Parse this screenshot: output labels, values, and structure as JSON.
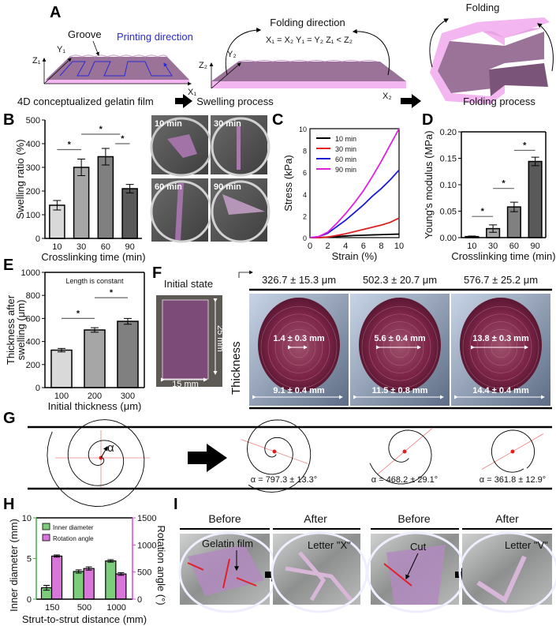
{
  "panel_labels": {
    "A": "A",
    "B": "B",
    "C": "C",
    "D": "D",
    "E": "E",
    "F": "F",
    "G": "G",
    "H": "H",
    "I": "I"
  },
  "a": {
    "groove": "Groove",
    "printing_direction": "Printing direction",
    "folding_direction": "Folding direction",
    "equation": "X₁ = X₂ Y₁ = Y₂ Z₁ < Z₂",
    "folding": "Folding",
    "axis_z1": "Z₁",
    "axis_y1": "Y₁",
    "axis_x1": "X₁",
    "axis_z2": "Z₂",
    "axis_y2": "Y₂",
    "axis_x2": "X₂",
    "caption_1": "4D conceptualized gelatin film",
    "caption_2": "Swelling process",
    "caption_3": "Folding process",
    "colors": {
      "film_top": "#9b7399",
      "film_edge": "#f4b6f0",
      "printing": "#2b2bd6"
    }
  },
  "b_photos": [
    "10 min",
    "30 min",
    "60 min",
    "90 min"
  ],
  "f": {
    "initial_state": "Initial state",
    "length": "25 mm",
    "width": "15 mm",
    "thickness_label": "Thickness",
    "thickness_values": [
      "326.7 ± 15.3 μm",
      "502.3 ± 20.7 μm",
      "576.7 ± 25.2 μm"
    ],
    "inner_diameters": [
      "1.4 ± 0.3 mm",
      "5.6 ± 0.4 mm",
      "13.8 ± 0.3 mm"
    ],
    "outer_diameters": [
      "9.1 ± 0.4 mm",
      "11.5 ± 0.8 mm",
      "14.4 ± 0.4 mm"
    ]
  },
  "g": {
    "alpha_symbol": "α",
    "alpha_values": [
      "α = 797.3 ± 13.3°",
      "α = 468.2 ± 29.1°",
      "α = 361.8 ± 12.9°"
    ]
  },
  "i": {
    "headers": [
      "Before",
      "After",
      "Before",
      "After"
    ],
    "gelatin_film": "Gelatin film",
    "letter_x": "Letter \"X\"",
    "cut": "Cut",
    "letter_v": "Letter \"V\""
  },
  "chart_data": [
    {
      "id": "B",
      "type": "bar",
      "categories": [
        "10",
        "30",
        "60",
        "90"
      ],
      "values": [
        140,
        300,
        345,
        210
      ],
      "errors": [
        20,
        35,
        35,
        18
      ],
      "colors": [
        "#d9d9d9",
        "#a6a6a6",
        "#808080",
        "#595959"
      ],
      "xlabel": "Crosslinking time (min)",
      "ylabel": "Swelling ratio (%)",
      "ylim": [
        0,
        500
      ],
      "yticks": [
        "0",
        "100",
        "200",
        "300",
        "400",
        "500"
      ],
      "significance": [
        {
          "pair": [
            0,
            1
          ],
          "level": 375,
          "mark": "*"
        },
        {
          "pair": [
            1,
            2.6
          ],
          "level": 440,
          "mark": "*"
        },
        {
          "pair": [
            2.4,
            3
          ],
          "level": 400,
          "mark": "*"
        }
      ]
    },
    {
      "id": "C",
      "type": "line",
      "x": [
        0,
        1,
        2,
        3,
        4,
        5,
        6,
        7,
        8,
        9,
        10
      ],
      "series": [
        {
          "name": "10 min",
          "color": "#000000",
          "values": [
            0,
            0,
            0.05,
            0.1,
            0.15,
            0.2,
            0.22,
            0.25,
            0.27,
            0.3,
            0.32
          ]
        },
        {
          "name": "30 min",
          "color": "#e02020",
          "values": [
            0,
            0,
            0.05,
            0.2,
            0.35,
            0.55,
            0.75,
            0.95,
            1.15,
            1.4,
            1.8
          ]
        },
        {
          "name": "60 min",
          "color": "#1a1ad8",
          "values": [
            0,
            0.1,
            0.4,
            1.0,
            1.6,
            2.3,
            3.0,
            3.8,
            4.5,
            5.3,
            6.2
          ]
        },
        {
          "name": "90 min",
          "color": "#e020e0",
          "values": [
            0,
            0.1,
            0.5,
            1.3,
            2.2,
            3.2,
            4.3,
            5.6,
            7.0,
            8.5,
            10
          ]
        }
      ],
      "xlabel": "Strain (%)",
      "ylabel": "Stress (kPa)",
      "xlim": [
        0,
        10
      ],
      "ylim": [
        0,
        10
      ],
      "xticks": [
        "0",
        "2",
        "4",
        "6",
        "8",
        "10"
      ],
      "yticks": [
        "0",
        "2",
        "4",
        "6",
        "8",
        "10"
      ],
      "legend": "top-left"
    },
    {
      "id": "D",
      "type": "bar",
      "categories": [
        "10",
        "30",
        "60",
        "90"
      ],
      "values": [
        0.002,
        0.017,
        0.058,
        0.144
      ],
      "errors": [
        0.001,
        0.007,
        0.009,
        0.008
      ],
      "colors": [
        "#d9d9d9",
        "#a6a6a6",
        "#808080",
        "#595959"
      ],
      "xlabel": "Crosslinking time (min)",
      "ylabel": "Young's modulus (MPa)",
      "ylim": [
        0,
        0.2
      ],
      "yticks": [
        "0.00",
        "0.05",
        "0.10",
        "0.15",
        "0.20"
      ],
      "significance": [
        {
          "pair": [
            0,
            1
          ],
          "level": 0.04,
          "mark": "*"
        },
        {
          "pair": [
            1,
            2
          ],
          "level": 0.093,
          "mark": "*"
        },
        {
          "pair": [
            2,
            3
          ],
          "level": 0.165,
          "mark": "*"
        }
      ]
    },
    {
      "id": "E",
      "type": "bar",
      "title": "Length is constant",
      "categories": [
        "100",
        "200",
        "300"
      ],
      "values": [
        325,
        500,
        575
      ],
      "errors": [
        15,
        20,
        25
      ],
      "colors": [
        "#d9d9d9",
        "#a6a6a6",
        "#808080"
      ],
      "xlabel": "Initial thickness (μm)",
      "ylabel": "Thickness after",
      "ylabel2": "swelling  (μm)",
      "ylim": [
        0,
        1000
      ],
      "yticks": [
        "0",
        "200",
        "400",
        "600",
        "800",
        "1000"
      ],
      "significance": [
        {
          "pair": [
            0,
            1
          ],
          "level": 600,
          "mark": "*"
        },
        {
          "pair": [
            1,
            2
          ],
          "level": 780,
          "mark": "*"
        }
      ]
    },
    {
      "id": "H",
      "type": "bar",
      "categories": [
        "150",
        "500",
        "1000"
      ],
      "series": [
        {
          "name": "Inner diameter",
          "axis": "left",
          "color": "#7ccc7c",
          "values": [
            1.4,
            3.4,
            4.7
          ],
          "errors": [
            0.3,
            0.2,
            0.15
          ]
        },
        {
          "name": "Rotation angle",
          "axis": "right",
          "color": "#d976d9",
          "values": [
            795,
            565,
            465
          ],
          "errors": [
            20,
            30,
            25
          ]
        }
      ],
      "xlabel": "Strut-to-strut distance (mm)",
      "ylabel": "Inner diameter (mm)",
      "ylabel_right": "Rotation angle (°)",
      "ylim": [
        0,
        10
      ],
      "yticks": [
        "0",
        "5",
        "10"
      ],
      "ylim_right": [
        0,
        1500
      ],
      "yticks_right": [
        "0",
        "500",
        "1000",
        "1500"
      ],
      "left_axis_color": "#3cb043",
      "right_axis_color": "#e040e0",
      "legend": "top-left"
    }
  ]
}
